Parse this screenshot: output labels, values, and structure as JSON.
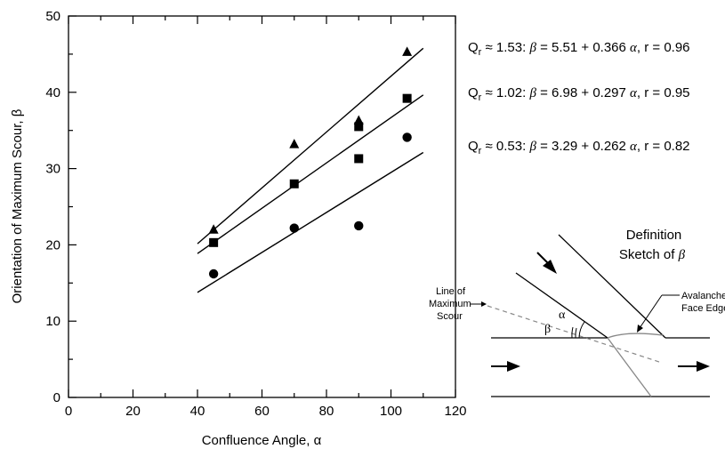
{
  "chart_data": {
    "type": "scatter",
    "xlabel": "Confluence Angle, α",
    "ylabel": "Orientation of Maximum Scour, β",
    "xlim": [
      0,
      120
    ],
    "ylim": [
      0,
      50
    ],
    "xticks": [
      "0",
      "20",
      "40",
      "60",
      "80",
      "100",
      "120"
    ],
    "yticks": [
      "0",
      "10",
      "20",
      "30",
      "40",
      "50"
    ],
    "grid": false,
    "series": [
      {
        "marker": "triangle",
        "points": [
          [
            45,
            22
          ],
          [
            70,
            33.2
          ],
          [
            90,
            36.3
          ],
          [
            105,
            45.3
          ]
        ],
        "fit": {
          "intercept": 5.51,
          "slope": 0.366,
          "x_range": [
            40,
            110
          ]
        },
        "label": {
          "q": "≈ 1.53:",
          "beta": "β",
          "rest": "= 5.51 + 0.366",
          "alpha": "α",
          "r": ", r = 0.96"
        }
      },
      {
        "marker": "square",
        "points": [
          [
            45,
            20.3
          ],
          [
            70,
            28
          ],
          [
            90,
            35.5
          ],
          [
            90,
            31.3
          ],
          [
            105,
            39.2
          ]
        ],
        "fit": {
          "intercept": 6.98,
          "slope": 0.297,
          "x_range": [
            40,
            110
          ]
        },
        "label": {
          "q": "≈ 1.02:",
          "beta": "β",
          "rest": "= 6.98 + 0.297",
          "alpha": "α",
          "r": ", r = 0.95"
        }
      },
      {
        "marker": "circle",
        "points": [
          [
            45,
            16.2
          ],
          [
            70,
            22.2
          ],
          [
            90,
            22.5
          ],
          [
            105,
            34.1
          ]
        ],
        "fit": {
          "intercept": 3.29,
          "slope": 0.262,
          "x_range": [
            40,
            110
          ]
        },
        "label": {
          "q": "≈ 0.53:",
          "beta": "β",
          "rest": "= 3.29 + 0.262",
          "alpha": "α",
          "r": ", r = 0.82"
        }
      }
    ],
    "qr_symbol": "Q",
    "qr_sub": "r"
  },
  "sketch": {
    "title_line1": "Definition",
    "title_line2": "Sketch of",
    "title_beta": "β",
    "line_of_max_scour": [
      "Line of",
      "Maximum",
      "Scour"
    ],
    "avalanche_face_edge": [
      "Avalanche",
      "Face Edge"
    ],
    "alpha": "α",
    "beta": "β"
  }
}
